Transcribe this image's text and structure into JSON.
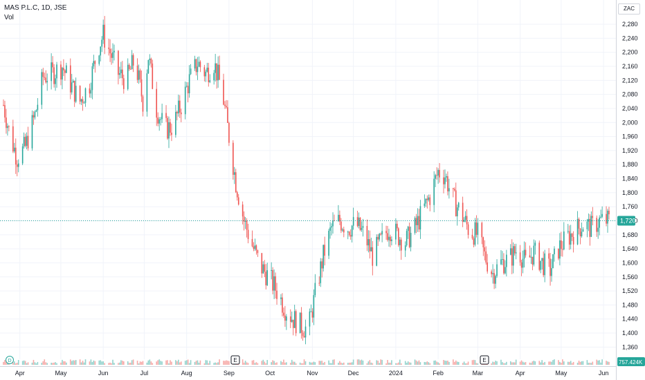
{
  "legend": {
    "symbol": "MAS P.L.C, 1D, JSE",
    "volume_label": "Vol"
  },
  "currency": "ZAC",
  "last_price_label": "1,720",
  "volume_label": "757.424K",
  "markers": {
    "dividend": "D",
    "earnings": "E"
  },
  "colors": {
    "up": "#26a69a",
    "down": "#ef5350",
    "price_line": "#26a69a",
    "grid": "#f0f3fa",
    "axis_text": "#131722"
  },
  "chart_data": {
    "type": "candlestick",
    "title": "MAS P.L.C, 1D, JSE",
    "ylim": [
      1320,
      2320
    ],
    "yticks": [
      1360,
      1400,
      1440,
      1480,
      1520,
      1560,
      1600,
      1640,
      1680,
      1720,
      1760,
      1800,
      1840,
      1880,
      1920,
      1960,
      2000,
      2040,
      2080,
      2120,
      2160,
      2200,
      2240,
      2280
    ],
    "ytick_labels": [
      "1,360",
      "1,400",
      "1,440",
      "1,480",
      "1,520",
      "1,560",
      "1,600",
      "1,640",
      "1,680",
      "1,720",
      "1,760",
      "1,800",
      "1,840",
      "1,880",
      "1,920",
      "1,960",
      "2,000",
      "2,040",
      "2,080",
      "2,120",
      "2,160",
      "2,200",
      "2,240",
      "2,280"
    ],
    "xticks": [
      "Apr",
      "May",
      "Jun",
      "Jul",
      "Aug",
      "Sep",
      "Oct",
      "Nov",
      "Dec",
      "2024",
      "Feb",
      "Mar",
      "Apr",
      "May",
      "Jun"
    ],
    "current_price": 1720,
    "close_series": [
      {
        "date": "2023-03-20",
        "close": 2050
      },
      {
        "date": "2023-03-25",
        "close": 1960
      },
      {
        "date": "2023-03-30",
        "close": 1900
      },
      {
        "date": "2023-04-05",
        "close": 1930
      },
      {
        "date": "2023-04-12",
        "close": 2020
      },
      {
        "date": "2023-04-18",
        "close": 2130
      },
      {
        "date": "2023-04-25",
        "close": 2140
      },
      {
        "date": "2023-05-02",
        "close": 2160
      },
      {
        "date": "2023-05-08",
        "close": 2110
      },
      {
        "date": "2023-05-15",
        "close": 2060
      },
      {
        "date": "2023-05-22",
        "close": 2110
      },
      {
        "date": "2023-05-28",
        "close": 2210
      },
      {
        "date": "2023-06-01",
        "close": 2250
      },
      {
        "date": "2023-06-06",
        "close": 2200
      },
      {
        "date": "2023-06-12",
        "close": 2140
      },
      {
        "date": "2023-06-18",
        "close": 2120
      },
      {
        "date": "2023-06-24",
        "close": 2180
      },
      {
        "date": "2023-06-30",
        "close": 2060
      },
      {
        "date": "2023-07-04",
        "close": 2190
      },
      {
        "date": "2023-07-10",
        "close": 2040
      },
      {
        "date": "2023-07-16",
        "close": 1980
      },
      {
        "date": "2023-07-22",
        "close": 1990
      },
      {
        "date": "2023-07-28",
        "close": 2050
      },
      {
        "date": "2023-08-03",
        "close": 2120
      },
      {
        "date": "2023-08-09",
        "close": 2170
      },
      {
        "date": "2023-08-15",
        "close": 2140
      },
      {
        "date": "2023-08-21",
        "close": 2170
      },
      {
        "date": "2023-08-27",
        "close": 2090
      },
      {
        "date": "2023-09-01",
        "close": 1960
      },
      {
        "date": "2023-09-06",
        "close": 1830
      },
      {
        "date": "2023-09-12",
        "close": 1720
      },
      {
        "date": "2023-09-18",
        "close": 1650
      },
      {
        "date": "2023-09-24",
        "close": 1590
      },
      {
        "date": "2023-09-30",
        "close": 1560
      },
      {
        "date": "2023-10-06",
        "close": 1520
      },
      {
        "date": "2023-10-12",
        "close": 1470
      },
      {
        "date": "2023-10-18",
        "close": 1440
      },
      {
        "date": "2023-10-24",
        "close": 1420
      },
      {
        "date": "2023-10-29",
        "close": 1410
      },
      {
        "date": "2023-11-03",
        "close": 1510
      },
      {
        "date": "2023-11-09",
        "close": 1620
      },
      {
        "date": "2023-11-15",
        "close": 1700
      },
      {
        "date": "2023-11-21",
        "close": 1720
      },
      {
        "date": "2023-11-27",
        "close": 1700
      },
      {
        "date": "2023-12-03",
        "close": 1710
      },
      {
        "date": "2023-12-09",
        "close": 1680
      },
      {
        "date": "2023-12-15",
        "close": 1620
      },
      {
        "date": "2023-12-21",
        "close": 1660
      },
      {
        "date": "2023-12-27",
        "close": 1700
      },
      {
        "date": "2024-01-02",
        "close": 1680
      },
      {
        "date": "2024-01-08",
        "close": 1660
      },
      {
        "date": "2024-01-14",
        "close": 1690
      },
      {
        "date": "2024-01-20",
        "close": 1740
      },
      {
        "date": "2024-01-26",
        "close": 1790
      },
      {
        "date": "2024-02-01",
        "close": 1860
      },
      {
        "date": "2024-02-06",
        "close": 1850
      },
      {
        "date": "2024-02-12",
        "close": 1780
      },
      {
        "date": "2024-02-18",
        "close": 1740
      },
      {
        "date": "2024-02-24",
        "close": 1690
      },
      {
        "date": "2024-03-01",
        "close": 1680
      },
      {
        "date": "2024-03-06",
        "close": 1620
      },
      {
        "date": "2024-03-12",
        "close": 1570
      },
      {
        "date": "2024-03-18",
        "close": 1600
      },
      {
        "date": "2024-03-24",
        "close": 1610
      },
      {
        "date": "2024-03-30",
        "close": 1640
      },
      {
        "date": "2024-04-05",
        "close": 1600
      },
      {
        "date": "2024-04-11",
        "close": 1630
      },
      {
        "date": "2024-04-17",
        "close": 1600
      },
      {
        "date": "2024-04-23",
        "close": 1580
      },
      {
        "date": "2024-04-29",
        "close": 1640
      },
      {
        "date": "2024-05-05",
        "close": 1670
      },
      {
        "date": "2024-05-11",
        "close": 1690
      },
      {
        "date": "2024-05-17",
        "close": 1710
      },
      {
        "date": "2024-05-23",
        "close": 1700
      },
      {
        "date": "2024-05-29",
        "close": 1720
      }
    ]
  }
}
